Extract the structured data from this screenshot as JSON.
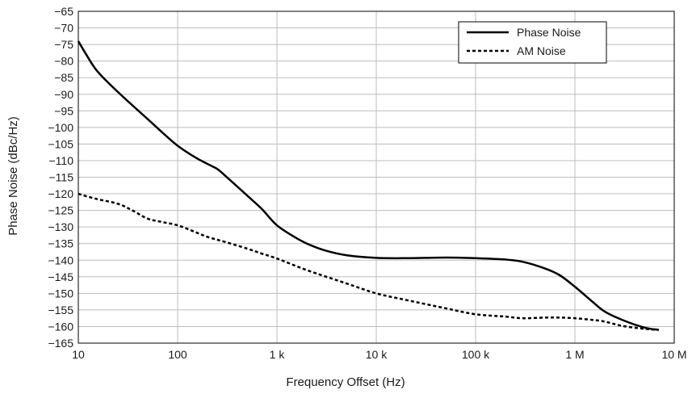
{
  "chart_data": {
    "type": "line",
    "xscale": "log",
    "xlim": [
      10,
      10000000
    ],
    "ylim": [
      -165,
      -65
    ],
    "xlabel": "Frequency Offset (Hz)",
    "ylabel": "Phase Noise (dBc/Hz)",
    "grid": true,
    "legend_position": "top-right",
    "x_ticks": [
      {
        "value": 10,
        "label": "10"
      },
      {
        "value": 100,
        "label": "100"
      },
      {
        "value": 1000,
        "label": "1 k"
      },
      {
        "value": 10000,
        "label": "10 k"
      },
      {
        "value": 100000,
        "label": "100 k"
      },
      {
        "value": 1000000,
        "label": "1 M"
      },
      {
        "value": 10000000,
        "label": "10 M"
      }
    ],
    "y_ticks": [
      {
        "value": -65,
        "label": "−65"
      },
      {
        "value": -70,
        "label": "−70"
      },
      {
        "value": -75,
        "label": "−75"
      },
      {
        "value": -80,
        "label": "−80"
      },
      {
        "value": -85,
        "label": "−85"
      },
      {
        "value": -90,
        "label": "−90"
      },
      {
        "value": -95,
        "label": "−95"
      },
      {
        "value": -100,
        "label": "−100"
      },
      {
        "value": -105,
        "label": "−105"
      },
      {
        "value": -110,
        "label": "−110"
      },
      {
        "value": -115,
        "label": "−115"
      },
      {
        "value": -120,
        "label": "−120"
      },
      {
        "value": -125,
        "label": "−125"
      },
      {
        "value": -130,
        "label": "−130"
      },
      {
        "value": -135,
        "label": "−135"
      },
      {
        "value": -140,
        "label": "−140"
      },
      {
        "value": -145,
        "label": "−145"
      },
      {
        "value": -150,
        "label": "−150"
      },
      {
        "value": -155,
        "label": "−155"
      },
      {
        "value": -160,
        "label": "−160"
      },
      {
        "value": -165,
        "label": "−165"
      }
    ],
    "series": [
      {
        "name": "Phase Noise",
        "style": "solid",
        "color": "#000000",
        "points": [
          [
            10,
            -74
          ],
          [
            12,
            -78
          ],
          [
            15,
            -82.5
          ],
          [
            20,
            -86.5
          ],
          [
            30,
            -91.5
          ],
          [
            50,
            -97.5
          ],
          [
            70,
            -101.5
          ],
          [
            100,
            -105.5
          ],
          [
            150,
            -109
          ],
          [
            200,
            -111
          ],
          [
            250,
            -112.5
          ],
          [
            300,
            -114.5
          ],
          [
            500,
            -120.5
          ],
          [
            700,
            -124.5
          ],
          [
            1000,
            -129.5
          ],
          [
            1500,
            -133
          ],
          [
            2000,
            -135
          ],
          [
            3000,
            -137
          ],
          [
            5000,
            -138.5
          ],
          [
            10000,
            -139.3
          ],
          [
            20000,
            -139.4
          ],
          [
            50000,
            -139.2
          ],
          [
            100000,
            -139.4
          ],
          [
            200000,
            -139.8
          ],
          [
            300000,
            -140.5
          ],
          [
            500000,
            -142.5
          ],
          [
            700000,
            -144.5
          ],
          [
            1000000,
            -148
          ],
          [
            1500000,
            -152.5
          ],
          [
            2000000,
            -155.5
          ],
          [
            3000000,
            -158
          ],
          [
            5000000,
            -160.3
          ],
          [
            7000000,
            -161
          ]
        ]
      },
      {
        "name": "AM Noise",
        "style": "dashed",
        "color": "#000000",
        "points": [
          [
            10,
            -120
          ],
          [
            15,
            -121.5
          ],
          [
            25,
            -123
          ],
          [
            35,
            -125
          ],
          [
            50,
            -127.5
          ],
          [
            70,
            -128.5
          ],
          [
            100,
            -129.5
          ],
          [
            150,
            -131.5
          ],
          [
            200,
            -133
          ],
          [
            300,
            -134.5
          ],
          [
            500,
            -136.5
          ],
          [
            700,
            -138
          ],
          [
            1000,
            -139.5
          ],
          [
            2000,
            -143
          ],
          [
            5000,
            -147
          ],
          [
            10000,
            -150
          ],
          [
            20000,
            -152
          ],
          [
            50000,
            -154.5
          ],
          [
            100000,
            -156.3
          ],
          [
            200000,
            -157
          ],
          [
            300000,
            -157.5
          ],
          [
            500000,
            -157.3
          ],
          [
            700000,
            -157.3
          ],
          [
            1000000,
            -157.5
          ],
          [
            1500000,
            -158
          ],
          [
            2000000,
            -158.5
          ],
          [
            3000000,
            -159.8
          ],
          [
            5000000,
            -160.7
          ],
          [
            7000000,
            -161
          ]
        ]
      }
    ]
  }
}
